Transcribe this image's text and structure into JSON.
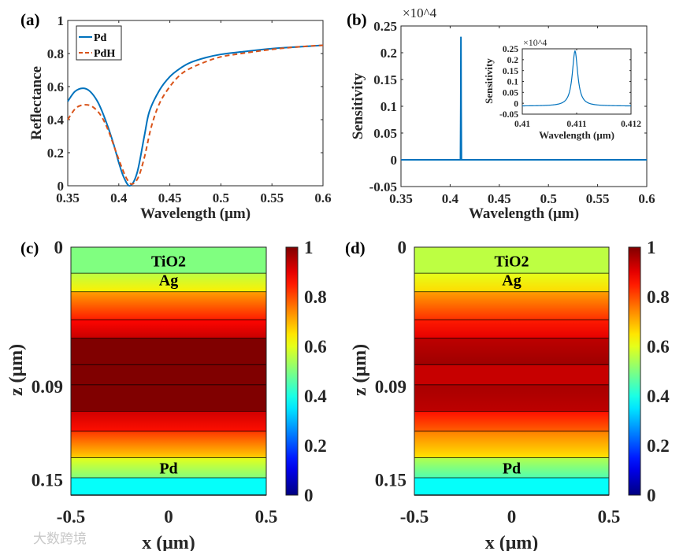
{
  "watermark": "大数跨境",
  "colors": {
    "pd": "#0072bd",
    "pdh": "#d95319",
    "axis": "#262626",
    "layer_line": "#000000"
  },
  "chart_data": [
    {
      "panel": "(a)",
      "type": "line",
      "xlabel": "Wavelength (μm)",
      "ylabel": "Reflectance",
      "xlim": [
        0.35,
        0.6
      ],
      "ylim": [
        0,
        1
      ],
      "xticks": [
        "0.35",
        "0.4",
        "0.45",
        "0.5",
        "0.55",
        "0.6"
      ],
      "yticks": [
        "0",
        "0.2",
        "0.4",
        "0.6",
        "0.8",
        "1"
      ],
      "legend": "top-left",
      "series": [
        {
          "name": "Pd",
          "style": "solid",
          "x": [
            0.35,
            0.357,
            0.365,
            0.372,
            0.38,
            0.388,
            0.395,
            0.4,
            0.405,
            0.411,
            0.418,
            0.425,
            0.43,
            0.44,
            0.45,
            0.46,
            0.47,
            0.485,
            0.5,
            0.52,
            0.55,
            0.575,
            0.6
          ],
          "y": [
            0.51,
            0.57,
            0.59,
            0.57,
            0.5,
            0.38,
            0.25,
            0.14,
            0.05,
            0.0,
            0.08,
            0.3,
            0.45,
            0.58,
            0.66,
            0.71,
            0.745,
            0.775,
            0.795,
            0.81,
            0.83,
            0.84,
            0.85
          ]
        },
        {
          "name": "PdH",
          "style": "dashed",
          "x": [
            0.35,
            0.358,
            0.367,
            0.375,
            0.383,
            0.39,
            0.397,
            0.403,
            0.408,
            0.413,
            0.419,
            0.425,
            0.432,
            0.44,
            0.45,
            0.46,
            0.47,
            0.485,
            0.5,
            0.52,
            0.55,
            0.575,
            0.6
          ],
          "y": [
            0.4,
            0.47,
            0.49,
            0.475,
            0.42,
            0.33,
            0.21,
            0.11,
            0.04,
            0.01,
            0.05,
            0.17,
            0.36,
            0.5,
            0.6,
            0.67,
            0.71,
            0.75,
            0.78,
            0.8,
            0.825,
            0.84,
            0.85
          ]
        }
      ]
    },
    {
      "panel": "(b)",
      "type": "line",
      "xlabel": "Wavelength (μm)",
      "ylabel": "Sensitivity",
      "multiplier": "×10^4",
      "xlim": [
        0.35,
        0.6
      ],
      "ylim": [
        -0.05,
        0.25
      ],
      "xticks": [
        "0.35",
        "0.4",
        "0.45",
        "0.5",
        "0.55",
        "0.6"
      ],
      "yticks": [
        "-0.05",
        "0",
        "0.05",
        "0.1",
        "0.15",
        "0.2",
        "0.25"
      ],
      "series": [
        {
          "name": "Sensitivity",
          "x": [
            0.35,
            0.4105,
            0.4108,
            0.411,
            0.4112,
            0.4115,
            0.6
          ],
          "y": [
            0,
            0,
            0.1,
            0.23,
            0.1,
            0,
            0
          ]
        }
      ],
      "inset": {
        "xlabel": "Wavelength (μm)",
        "ylabel": "Sensitivity",
        "multiplier": "×10^4",
        "xlim": [
          0.41,
          0.412
        ],
        "ylim": [
          -0.05,
          0.25
        ],
        "xticks": [
          "0.41",
          "0.411",
          "0.412"
        ],
        "yticks": [
          "-0.05",
          "0",
          "0.05",
          "0.1",
          "0.15",
          "0.2",
          "0.25"
        ],
        "peak": {
          "x": 0.41097,
          "y": 0.24,
          "baseline": -0.013,
          "width": 6e-05
        }
      }
    },
    {
      "panel": "(c)",
      "type": "heatmap",
      "xlabel": "x (μm)",
      "ylabel": "z (μm)",
      "xlim": [
        -0.5,
        0.5
      ],
      "zlim": [
        0,
        0.16
      ],
      "xticks": [
        "-0.5",
        "0",
        "0.5"
      ],
      "zticks": [
        {
          "v": 0,
          "label": "0"
        },
        {
          "v": 0.09,
          "label": "0.09"
        },
        {
          "v": 0.15,
          "label": "0.15"
        }
      ],
      "colorbar": {
        "range": [
          0,
          1
        ],
        "ticks": [
          "0",
          "0.2",
          "0.4",
          "0.6",
          "0.8",
          "1"
        ],
        "colormap": "jet"
      },
      "layers": [
        {
          "z": [
            0,
            0.017
          ],
          "values": [
            0.5,
            0.5
          ],
          "label": "TiO2"
        },
        {
          "z": [
            0.017,
            0.029
          ],
          "values": [
            0.56,
            0.64
          ],
          "label": "Ag"
        },
        {
          "z": [
            0.029,
            0.047
          ],
          "values": [
            0.72,
            0.85
          ]
        },
        {
          "z": [
            0.047,
            0.059
          ],
          "values": [
            0.87,
            0.93
          ]
        },
        {
          "z": [
            0.059,
            0.076
          ],
          "values": [
            1,
            1
          ]
        },
        {
          "z": [
            0.076,
            0.089
          ],
          "values": [
            1,
            1
          ]
        },
        {
          "z": [
            0.089,
            0.106
          ],
          "values": [
            1,
            1
          ]
        },
        {
          "z": [
            0.106,
            0.119
          ],
          "values": [
            0.92,
            0.86
          ]
        },
        {
          "z": [
            0.119,
            0.136
          ],
          "values": [
            0.82,
            0.67
          ]
        },
        {
          "z": [
            0.136,
            0.149
          ],
          "values": [
            0.6,
            0.5
          ],
          "label": "Pd"
        },
        {
          "z": [
            0.149,
            0.16
          ],
          "values": [
            0.38,
            0.38
          ]
        }
      ]
    },
    {
      "panel": "(d)",
      "type": "heatmap",
      "xlabel": "x (μm)",
      "ylabel": "z (μm)",
      "xlim": [
        -0.5,
        0.5
      ],
      "zlim": [
        0,
        0.16
      ],
      "xticks": [
        "-0.5",
        "0",
        "0.5"
      ],
      "zticks": [
        {
          "v": 0,
          "label": "0"
        },
        {
          "v": 0.09,
          "label": "0.09"
        },
        {
          "v": 0.15,
          "label": "0.15"
        }
      ],
      "colorbar": {
        "range": [
          0,
          1
        ],
        "ticks": [
          "0",
          "0.2",
          "0.4",
          "0.6",
          "0.8",
          "1"
        ],
        "colormap": "jet"
      },
      "layers": [
        {
          "z": [
            0,
            0.017
          ],
          "values": [
            0.56,
            0.56
          ],
          "label": "TiO2"
        },
        {
          "z": [
            0.017,
            0.029
          ],
          "values": [
            0.6,
            0.66
          ],
          "label": "Ag"
        },
        {
          "z": [
            0.029,
            0.047
          ],
          "values": [
            0.72,
            0.83
          ]
        },
        {
          "z": [
            0.047,
            0.059
          ],
          "values": [
            0.85,
            0.9
          ]
        },
        {
          "z": [
            0.059,
            0.076
          ],
          "values": [
            0.94,
            0.97
          ]
        },
        {
          "z": [
            0.076,
            0.089
          ],
          "values": [
            0.93,
            0.93
          ]
        },
        {
          "z": [
            0.089,
            0.106
          ],
          "values": [
            0.96,
            0.94
          ]
        },
        {
          "z": [
            0.106,
            0.119
          ],
          "values": [
            0.86,
            0.78
          ]
        },
        {
          "z": [
            0.119,
            0.136
          ],
          "values": [
            0.75,
            0.65
          ]
        },
        {
          "z": [
            0.136,
            0.149
          ],
          "values": [
            0.55,
            0.45
          ],
          "label": "Pd"
        },
        {
          "z": [
            0.149,
            0.16
          ],
          "values": [
            0.38,
            0.38
          ]
        }
      ]
    }
  ]
}
